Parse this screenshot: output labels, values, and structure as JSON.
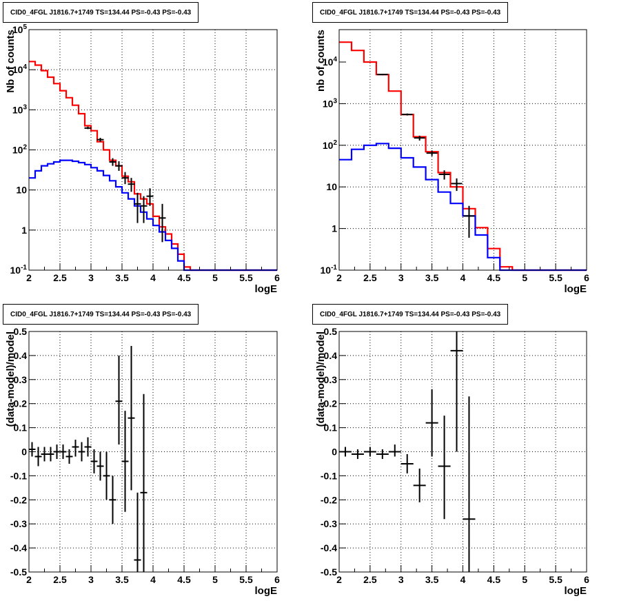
{
  "colors": {
    "model_total": "#ff0000",
    "model_component": "#0000ff",
    "data": "#000000"
  },
  "chart_data": [
    {
      "type": "line",
      "title": "CID0_4FGL J1816.7+1749 TS=134.44 PS=-0.43 PS=-0.43",
      "xlabel": "logE",
      "ylabel": "Nb of counts",
      "xlim": [
        2,
        6
      ],
      "ylim": [
        0.1,
        100000
      ],
      "yscale": "log",
      "grid": true,
      "xticks": [
        "2",
        "2.5",
        "3",
        "3.5",
        "4",
        "4.5",
        "5",
        "5.5",
        "6"
      ],
      "yticks": [
        "10^-1",
        "1",
        "10",
        "10^2",
        "10^3",
        "10^4",
        "10^5"
      ],
      "series": [
        {
          "style": "step",
          "color": "#ff0000",
          "bin_edges": [
            2.0,
            2.1,
            2.2,
            2.3,
            2.4,
            2.5,
            2.6,
            2.7,
            2.8,
            2.9,
            3.0,
            3.1,
            3.2,
            3.3,
            3.4,
            3.5,
            3.6,
            3.7,
            3.8,
            3.9,
            4.0,
            4.1,
            4.2,
            4.3,
            4.4,
            4.5,
            4.6,
            4.7,
            4.8,
            4.9,
            5.0,
            5.1,
            5.2,
            5.3,
            5.4,
            5.5,
            5.6,
            5.7,
            5.8,
            5.9,
            6.0
          ],
          "values": [
            16000,
            13000,
            9500,
            6500,
            4500,
            3000,
            2000,
            1300,
            800,
            400,
            300,
            160,
            100,
            55,
            40,
            22,
            16,
            8,
            6,
            4.5,
            2.2,
            1.2,
            0.8,
            0.45,
            0.25,
            0.12,
            0.1,
            0.1,
            0.1,
            0.1,
            0.1,
            0.1,
            0.1,
            0.1,
            0.1,
            0.1,
            0.1,
            0.1,
            0.1,
            0.1
          ]
        },
        {
          "style": "step",
          "color": "#0000ff",
          "bin_edges": [
            2.0,
            2.1,
            2.2,
            2.3,
            2.4,
            2.5,
            2.6,
            2.7,
            2.8,
            2.9,
            3.0,
            3.1,
            3.2,
            3.3,
            3.4,
            3.5,
            3.6,
            3.7,
            3.8,
            3.9,
            4.0,
            4.1,
            4.2,
            4.3,
            4.4,
            4.5,
            4.6,
            4.7,
            4.8,
            4.9,
            5.0,
            5.1,
            5.2,
            5.3,
            5.4,
            5.5,
            5.6,
            5.7,
            5.8,
            5.9,
            6.0
          ],
          "values": [
            20,
            30,
            40,
            45,
            50,
            55,
            55,
            52,
            48,
            43,
            36,
            30,
            23,
            17,
            12,
            8.5,
            6,
            4,
            2.8,
            1.9,
            1.3,
            0.9,
            0.55,
            0.35,
            0.17,
            0.1,
            0.1,
            0.1,
            0.1,
            0.1,
            0.1,
            0.1,
            0.1,
            0.1,
            0.1,
            0.1,
            0.1,
            0.1,
            0.1,
            0.1
          ]
        },
        {
          "style": "errorbar",
          "color": "#000000",
          "x": [
            2.95,
            3.15,
            3.35,
            3.45,
            3.55,
            3.65,
            3.75,
            3.85,
            3.95,
            4.15
          ],
          "y": [
            350,
            180,
            50,
            40,
            20,
            14,
            4.5,
            4,
            7,
            2
          ],
          "ylow": [
            330,
            160,
            40,
            30,
            14,
            9,
            1.5,
            1.5,
            4,
            0.5
          ],
          "yhigh": [
            380,
            200,
            62,
            52,
            28,
            20,
            8.5,
            7,
            11,
            4.5
          ]
        }
      ]
    },
    {
      "type": "line",
      "title": "CID0_4FGL J1816.7+1749 TS=134.44 PS=-0.43 PS=-0.43",
      "xlabel": "logE",
      "ylabel": "nb of counts",
      "xlim": [
        2,
        6
      ],
      "ylim": [
        0.1,
        60000
      ],
      "yscale": "log",
      "grid": true,
      "xticks": [
        "2",
        "2.5",
        "3",
        "3.5",
        "4",
        "4.5",
        "5",
        "5.5",
        "6"
      ],
      "yticks": [
        "10^-1",
        "1",
        "10",
        "10^2",
        "10^3",
        "10^4"
      ],
      "series": [
        {
          "style": "step",
          "color": "#ff0000",
          "bin_edges": [
            2.0,
            2.2,
            2.4,
            2.6,
            2.8,
            3.0,
            3.2,
            3.4,
            3.6,
            3.8,
            4.0,
            4.2,
            4.4,
            4.6,
            4.8,
            5.0,
            5.2,
            5.4,
            5.6,
            5.8,
            6.0
          ],
          "values": [
            30000,
            19000,
            10000,
            5000,
            2000,
            550,
            160,
            70,
            22,
            10,
            3,
            1.05,
            0.33,
            0.12,
            0.1,
            0.1,
            0.1,
            0.1,
            0.1,
            0.1
          ]
        },
        {
          "style": "step",
          "color": "#0000ff",
          "bin_edges": [
            2.0,
            2.2,
            2.4,
            2.6,
            2.8,
            3.0,
            3.2,
            3.4,
            3.6,
            3.8,
            4.0,
            4.2,
            4.4,
            4.6,
            4.8,
            5.0,
            5.2,
            5.4,
            5.6,
            5.8,
            6.0
          ],
          "values": [
            45,
            80,
            100,
            110,
            85,
            50,
            30,
            15,
            7.5,
            4,
            2,
            0.7,
            0.2,
            0.1,
            0.1,
            0.1,
            0.1,
            0.1,
            0.1,
            0.1
          ]
        },
        {
          "style": "errorbar",
          "color": "#000000",
          "x": [
            2.7,
            3.1,
            3.3,
            3.5,
            3.7,
            3.9,
            4.1
          ],
          "y": [
            5000,
            550,
            150,
            65,
            20,
            12,
            2
          ],
          "ylow": [
            4800,
            520,
            130,
            55,
            15,
            8,
            0.6
          ],
          "yhigh": [
            5200,
            580,
            170,
            75,
            25,
            16,
            3.5
          ]
        }
      ]
    },
    {
      "type": "scatter",
      "title": "CID0_4FGL J1816.7+1749 TS=134.44 PS=-0.43 PS=-0.43",
      "xlabel": "logE",
      "ylabel": "(data-model)/model",
      "xlim": [
        2,
        6
      ],
      "ylim": [
        -0.5,
        0.5
      ],
      "grid": true,
      "xticks": [
        "2",
        "2.5",
        "3",
        "3.5",
        "4",
        "4.5",
        "5",
        "5.5",
        "6"
      ],
      "yticks": [
        "-0.5",
        "-0.4",
        "-0.3",
        "-0.2",
        "-0.1",
        "0",
        "0.1",
        "0.2",
        "0.3",
        "0.4",
        "0.5"
      ],
      "series": [
        {
          "style": "errorbar",
          "color": "#000000",
          "x": [
            2.05,
            2.15,
            2.25,
            2.35,
            2.45,
            2.55,
            2.65,
            2.75,
            2.85,
            2.95,
            3.05,
            3.15,
            3.25,
            3.35,
            3.45,
            3.55,
            3.65,
            3.75,
            3.85
          ],
          "y": [
            0.01,
            -0.02,
            -0.01,
            -0.01,
            0.0,
            0.0,
            -0.02,
            0.02,
            0.0,
            0.02,
            -0.04,
            -0.06,
            -0.1,
            -0.2,
            0.21,
            -0.04,
            0.14,
            -0.45,
            -0.17
          ],
          "ylow": [
            -0.02,
            -0.06,
            -0.04,
            -0.04,
            -0.03,
            -0.03,
            -0.05,
            -0.02,
            -0.04,
            -0.02,
            -0.09,
            -0.12,
            -0.2,
            -0.3,
            0.03,
            -0.25,
            -0.16,
            -0.5,
            -0.5
          ],
          "yhigh": [
            0.04,
            0.02,
            0.02,
            0.02,
            0.03,
            0.03,
            0.01,
            0.05,
            0.04,
            0.06,
            0.01,
            0.0,
            0.0,
            -0.1,
            0.4,
            0.17,
            0.44,
            -0.17,
            0.24
          ]
        }
      ]
    },
    {
      "type": "scatter",
      "title": "CID0_4FGL J1816.7+1749 TS=134.44 PS=-0.43 PS=-0.43",
      "xlabel": "logE",
      "ylabel": "(data-model)/model",
      "xlim": [
        2,
        6
      ],
      "ylim": [
        -0.5,
        0.5
      ],
      "grid": true,
      "xticks": [
        "2",
        "2.5",
        "3",
        "3.5",
        "4",
        "4.5",
        "5",
        "5.5",
        "6"
      ],
      "yticks": [
        "-0.5",
        "-0.4",
        "-0.3",
        "-0.2",
        "-0.1",
        "0",
        "0.1",
        "0.2",
        "0.3",
        "0.4",
        "0.5"
      ],
      "series": [
        {
          "style": "errorbar",
          "color": "#000000",
          "x": [
            2.1,
            2.3,
            2.5,
            2.7,
            2.9,
            3.1,
            3.3,
            3.5,
            3.7,
            3.9,
            4.1
          ],
          "y": [
            0.0,
            -0.01,
            0.0,
            -0.01,
            0.0,
            -0.05,
            -0.14,
            0.12,
            -0.06,
            0.42,
            -0.28
          ],
          "ylow": [
            -0.02,
            -0.03,
            -0.02,
            -0.03,
            -0.02,
            -0.09,
            -0.21,
            -0.02,
            -0.28,
            0.0,
            -0.5
          ],
          "yhigh": [
            0.02,
            0.01,
            0.02,
            0.01,
            0.03,
            -0.01,
            -0.07,
            0.26,
            0.15,
            0.5,
            0.23
          ]
        }
      ]
    }
  ]
}
